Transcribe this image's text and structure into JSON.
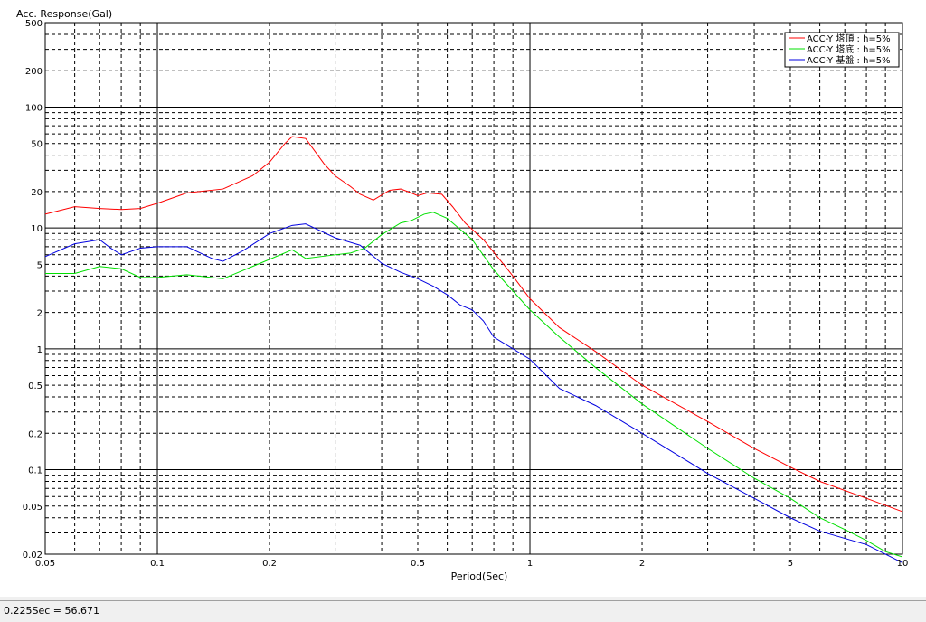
{
  "chart_data": {
    "type": "line",
    "ylabel": "Acc. Response(Gal)",
    "xlabel": "Period(Sec)",
    "xscale": "log",
    "yscale": "log",
    "xlim": [
      0.05,
      10
    ],
    "ylim": [
      0.02,
      500
    ],
    "grid": true,
    "legend_position": "top-right",
    "x_ticks": [
      {
        "v": 0.05,
        "t": "0.05"
      },
      {
        "v": 0.1,
        "t": "0.1"
      },
      {
        "v": 0.2,
        "t": "0.2"
      },
      {
        "v": 0.5,
        "t": "0.5"
      },
      {
        "v": 1,
        "t": "1"
      },
      {
        "v": 2,
        "t": "2"
      },
      {
        "v": 5,
        "t": "5"
      },
      {
        "v": 10,
        "t": "10"
      }
    ],
    "y_ticks": [
      {
        "v": 0.02,
        "t": "0.02"
      },
      {
        "v": 0.05,
        "t": "0.05"
      },
      {
        "v": 0.1,
        "t": "0.1"
      },
      {
        "v": 0.2,
        "t": "0.2"
      },
      {
        "v": 0.5,
        "t": "0.5"
      },
      {
        "v": 1,
        "t": "1"
      },
      {
        "v": 2,
        "t": "2"
      },
      {
        "v": 5,
        "t": "5"
      },
      {
        "v": 10,
        "t": "10"
      },
      {
        "v": 20,
        "t": "20"
      },
      {
        "v": 50,
        "t": "50"
      },
      {
        "v": 100,
        "t": "100"
      },
      {
        "v": 200,
        "t": "200"
      },
      {
        "v": 500,
        "t": "500"
      }
    ],
    "series": [
      {
        "name": "ACC-Y 塔頂 : h=5%",
        "color": "#ff0000",
        "points": [
          [
            0.05,
            13
          ],
          [
            0.06,
            15
          ],
          [
            0.07,
            14.5
          ],
          [
            0.08,
            14.2
          ],
          [
            0.09,
            14.5
          ],
          [
            0.1,
            16
          ],
          [
            0.12,
            19.5
          ],
          [
            0.15,
            21
          ],
          [
            0.18,
            27
          ],
          [
            0.2,
            35
          ],
          [
            0.22,
            50
          ],
          [
            0.23,
            57
          ],
          [
            0.25,
            55
          ],
          [
            0.28,
            34
          ],
          [
            0.3,
            27
          ],
          [
            0.33,
            22
          ],
          [
            0.35,
            19
          ],
          [
            0.38,
            17
          ],
          [
            0.42,
            20.5
          ],
          [
            0.45,
            21
          ],
          [
            0.48,
            19.5
          ],
          [
            0.5,
            18.5
          ],
          [
            0.53,
            19.5
          ],
          [
            0.58,
            19
          ],
          [
            0.62,
            15
          ],
          [
            0.67,
            11
          ],
          [
            0.75,
            8
          ],
          [
            0.85,
            5
          ],
          [
            0.9,
            4
          ],
          [
            1,
            2.6
          ],
          [
            1.2,
            1.5
          ],
          [
            1.5,
            0.95
          ],
          [
            2,
            0.5
          ],
          [
            3,
            0.25
          ],
          [
            4,
            0.15
          ],
          [
            5,
            0.105
          ],
          [
            6,
            0.08
          ],
          [
            8,
            0.058
          ],
          [
            10,
            0.045
          ]
        ]
      },
      {
        "name": "ACC-Y 塔底 : h=5%",
        "color": "#00e000",
        "points": [
          [
            0.05,
            4.2
          ],
          [
            0.06,
            4.2
          ],
          [
            0.07,
            4.8
          ],
          [
            0.08,
            4.6
          ],
          [
            0.09,
            3.9
          ],
          [
            0.1,
            3.9
          ],
          [
            0.12,
            4.1
          ],
          [
            0.15,
            3.8
          ],
          [
            0.18,
            4.8
          ],
          [
            0.2,
            5.5
          ],
          [
            0.23,
            6.6
          ],
          [
            0.25,
            5.6
          ],
          [
            0.3,
            6
          ],
          [
            0.33,
            6.2
          ],
          [
            0.36,
            6.8
          ],
          [
            0.4,
            8.8
          ],
          [
            0.45,
            11
          ],
          [
            0.48,
            11.5
          ],
          [
            0.52,
            13
          ],
          [
            0.55,
            13.5
          ],
          [
            0.6,
            12
          ],
          [
            0.7,
            8
          ],
          [
            0.8,
            4.5
          ],
          [
            1,
            2.1
          ],
          [
            1.2,
            1.25
          ],
          [
            1.5,
            0.7
          ],
          [
            2,
            0.35
          ],
          [
            3,
            0.15
          ],
          [
            4,
            0.085
          ],
          [
            5,
            0.058
          ],
          [
            6,
            0.04
          ],
          [
            7,
            0.032
          ],
          [
            8,
            0.026
          ],
          [
            9,
            0.021
          ],
          [
            10,
            0.019
          ]
        ]
      },
      {
        "name": "ACC-Y 基盤 : h=5%",
        "color": "#0000e0",
        "points": [
          [
            0.05,
            5.8
          ],
          [
            0.06,
            7.4
          ],
          [
            0.07,
            8
          ],
          [
            0.075,
            6.8
          ],
          [
            0.08,
            6
          ],
          [
            0.09,
            6.8
          ],
          [
            0.1,
            7
          ],
          [
            0.12,
            7
          ],
          [
            0.14,
            5.6
          ],
          [
            0.15,
            5.3
          ],
          [
            0.17,
            6.5
          ],
          [
            0.2,
            9
          ],
          [
            0.23,
            10.5
          ],
          [
            0.25,
            10.8
          ],
          [
            0.3,
            8.3
          ],
          [
            0.35,
            7.2
          ],
          [
            0.4,
            5.1
          ],
          [
            0.45,
            4.3
          ],
          [
            0.5,
            3.8
          ],
          [
            0.55,
            3.3
          ],
          [
            0.6,
            2.8
          ],
          [
            0.65,
            2.3
          ],
          [
            0.7,
            2.1
          ],
          [
            0.75,
            1.7
          ],
          [
            0.8,
            1.25
          ],
          [
            0.9,
            1
          ],
          [
            1,
            0.82
          ],
          [
            1.2,
            0.47
          ],
          [
            1.5,
            0.34
          ],
          [
            2,
            0.2
          ],
          [
            3,
            0.093
          ],
          [
            4,
            0.058
          ],
          [
            5,
            0.04
          ],
          [
            6,
            0.031
          ],
          [
            8,
            0.024
          ],
          [
            10,
            0.017
          ]
        ]
      }
    ]
  },
  "status": {
    "readout": "0.225Sec = 56.671"
  }
}
